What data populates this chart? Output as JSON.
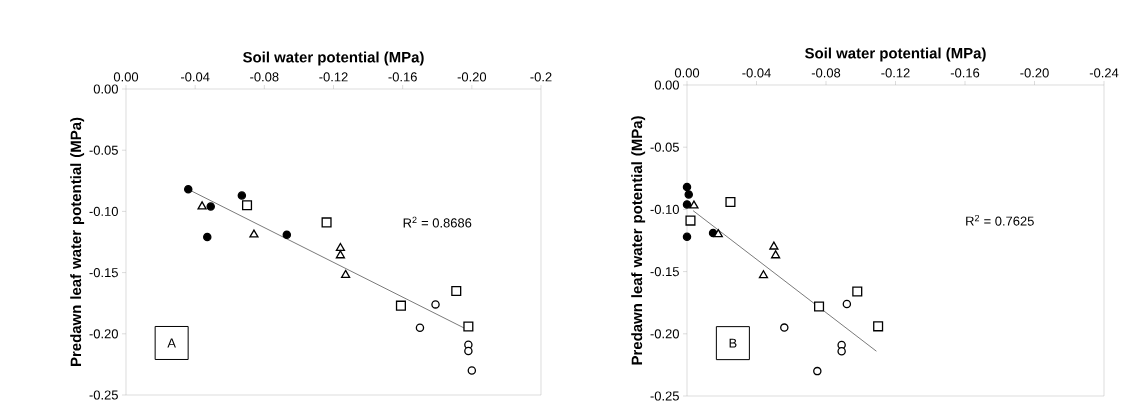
{
  "chart_data": [
    {
      "type": "scatter",
      "xlabel": "Soil water potential (MPa)",
      "ylabel": "Predawn leaf water potential (MPa)",
      "xlim": [
        0,
        -0.24
      ],
      "ylim": [
        -0.25,
        0
      ],
      "xticks": [
        {
          "value": 0,
          "label": "0.00"
        },
        {
          "value": -0.04,
          "label": "-0.04"
        },
        {
          "value": -0.08,
          "label": "-0.08"
        },
        {
          "value": -0.12,
          "label": "-0.12"
        },
        {
          "value": -0.16,
          "label": "-0.16"
        },
        {
          "value": -0.2,
          "label": "-0.20"
        },
        {
          "value": -0.24,
          "label": "-0.2"
        }
      ],
      "yticks": [
        {
          "value": 0,
          "label": "0.00"
        },
        {
          "value": -0.05,
          "label": "-0.05"
        },
        {
          "value": -0.1,
          "label": "-0.10"
        },
        {
          "value": -0.15,
          "label": "-0.15"
        },
        {
          "value": -0.2,
          "label": "-0.20"
        },
        {
          "value": -0.25,
          "label": "-0.25"
        }
      ],
      "annotations": [
        "R$^{2}$ = 0.8686",
        "A"
      ],
      "series": [
        {
          "marker": "circle",
          "color": "#000000",
          "x": [
            -0.036,
            -0.049,
            -0.047,
            -0.067,
            -0.093
          ],
          "values": [
            -0.082,
            -0.096,
            -0.121,
            -0.087,
            -0.119
          ]
        },
        {
          "marker": "triangle",
          "color": "#ffffff",
          "x": [
            -0.044,
            -0.074,
            -0.124,
            -0.124,
            -0.127
          ],
          "values": [
            -0.096,
            -0.119,
            -0.13,
            -0.136,
            -0.152
          ]
        },
        {
          "marker": "square",
          "color": "#ffffff",
          "x": [
            -0.07,
            -0.116,
            -0.159,
            -0.191,
            -0.198
          ],
          "values": [
            -0.095,
            -0.109,
            -0.177,
            -0.165,
            -0.194
          ]
        },
        {
          "marker": "circle",
          "color": "#ffffff",
          "x": [
            -0.179,
            -0.17,
            -0.198,
            -0.198,
            -0.2
          ],
          "values": [
            -0.176,
            -0.195,
            -0.209,
            -0.214,
            -0.23
          ]
        },
        {
          "type": "line",
          "marker": "none",
          "color": "#404040",
          "x": [
            -0.036,
            -0.198
          ],
          "values": [
            -0.082,
            -0.197
          ]
        }
      ]
    },
    {
      "type": "scatter",
      "xlabel": "Soil water potential (MPa)",
      "ylabel": "Predawn leaf water potential (MPa)",
      "xlim": [
        0,
        -0.24
      ],
      "ylim": [
        -0.25,
        0
      ],
      "xticks": [
        {
          "value": 0,
          "label": "0.00"
        },
        {
          "value": -0.04,
          "label": "-0.04"
        },
        {
          "value": -0.08,
          "label": "-0.08"
        },
        {
          "value": -0.12,
          "label": "-0.12"
        },
        {
          "value": -0.16,
          "label": "-0.16"
        },
        {
          "value": -0.2,
          "label": "-0.20"
        },
        {
          "value": -0.24,
          "label": "-0.24"
        }
      ],
      "yticks": [
        {
          "value": 0,
          "label": "0.00"
        },
        {
          "value": -0.05,
          "label": "-0.05"
        },
        {
          "value": -0.1,
          "label": "-0.10"
        },
        {
          "value": -0.15,
          "label": "-0.15"
        },
        {
          "value": -0.2,
          "label": "-0.20"
        },
        {
          "value": -0.25,
          "label": "-0.25"
        }
      ],
      "annotations": [
        "R$^{2}$ = 0.7625",
        "B"
      ],
      "series": [
        {
          "marker": "circle",
          "color": "#000000",
          "x": [
            0,
            -0.001,
            0,
            0,
            -0.015
          ],
          "values": [
            -0.082,
            -0.088,
            -0.096,
            -0.122,
            -0.119
          ]
        },
        {
          "marker": "triangle",
          "color": "#ffffff",
          "x": [
            -0.004,
            -0.018,
            -0.05,
            -0.051,
            -0.044
          ],
          "values": [
            -0.097,
            -0.12,
            -0.13,
            -0.137,
            -0.153
          ]
        },
        {
          "marker": "square",
          "color": "#ffffff",
          "x": [
            -0.025,
            -0.002,
            -0.076,
            -0.098,
            -0.11
          ],
          "values": [
            -0.094,
            -0.109,
            -0.178,
            -0.166,
            -0.194
          ]
        },
        {
          "marker": "circle",
          "color": "#ffffff",
          "x": [
            -0.092,
            -0.056,
            -0.089,
            -0.089,
            -0.075
          ],
          "values": [
            -0.176,
            -0.195,
            -0.209,
            -0.214,
            -0.23
          ]
        },
        {
          "type": "line",
          "marker": "none",
          "color": "#404040",
          "x": [
            -0.0035,
            -0.109
          ],
          "values": [
            -0.101,
            -0.214
          ]
        }
      ]
    }
  ]
}
